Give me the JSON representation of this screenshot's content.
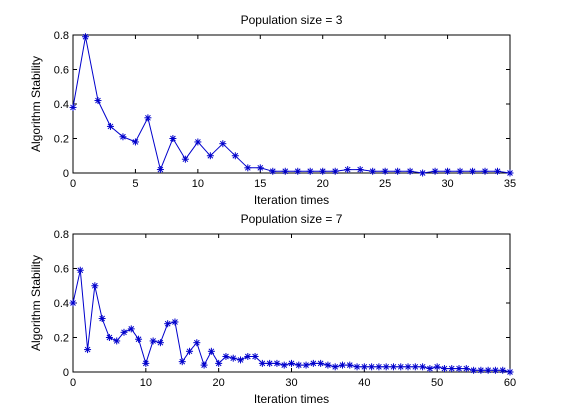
{
  "chart_data": [
    {
      "type": "line",
      "title": "Population size = 3",
      "xlabel": "Iteration times",
      "ylabel": "Algorithm Stability",
      "xlim": [
        0,
        35
      ],
      "ylim": [
        0,
        0.8
      ],
      "xticks": [
        "0",
        "5",
        "10",
        "15",
        "20",
        "25",
        "30",
        "35"
      ],
      "yticks": [
        "0",
        "0.2",
        "0.4",
        "0.6",
        "0.8"
      ],
      "marker": "asterisk",
      "grid": false,
      "series": [
        {
          "color": "#0000cc",
          "x": [
            0,
            1,
            2,
            3,
            4,
            5,
            6,
            7,
            8,
            9,
            10,
            11,
            12,
            13,
            14,
            15,
            16,
            17,
            18,
            19,
            20,
            21,
            22,
            23,
            24,
            25,
            26,
            27,
            28,
            29,
            30,
            31,
            32,
            33,
            34,
            35
          ],
          "y": [
            0.38,
            0.79,
            0.42,
            0.27,
            0.21,
            0.18,
            0.32,
            0.02,
            0.2,
            0.08,
            0.18,
            0.1,
            0.17,
            0.1,
            0.03,
            0.03,
            0.01,
            0.01,
            0.01,
            0.01,
            0.01,
            0.01,
            0.02,
            0.02,
            0.01,
            0.01,
            0.01,
            0.01,
            0.0,
            0.01,
            0.01,
            0.01,
            0.01,
            0.01,
            0.01,
            0.0
          ]
        }
      ]
    },
    {
      "type": "line",
      "title": "Population size = 7",
      "xlabel": "Iteration times",
      "ylabel": "Algorithm Stability",
      "xlim": [
        0,
        60
      ],
      "ylim": [
        0,
        0.8
      ],
      "xticks": [
        "0",
        "10",
        "20",
        "30",
        "40",
        "50",
        "60"
      ],
      "yticks": [
        "0",
        "0.2",
        "0.4",
        "0.6",
        "0.8"
      ],
      "marker": "asterisk",
      "grid": false,
      "series": [
        {
          "color": "#0000cc",
          "x": [
            0,
            1,
            2,
            3,
            4,
            5,
            6,
            7,
            8,
            9,
            10,
            11,
            12,
            13,
            14,
            15,
            16,
            17,
            18,
            19,
            20,
            21,
            22,
            23,
            24,
            25,
            26,
            27,
            28,
            29,
            30,
            31,
            32,
            33,
            34,
            35,
            36,
            37,
            38,
            39,
            40,
            41,
            42,
            43,
            44,
            45,
            46,
            47,
            48,
            49,
            50,
            51,
            52,
            53,
            54,
            55,
            56,
            57,
            58,
            59,
            60
          ],
          "y": [
            0.4,
            0.59,
            0.13,
            0.5,
            0.31,
            0.2,
            0.18,
            0.23,
            0.25,
            0.19,
            0.05,
            0.18,
            0.17,
            0.28,
            0.29,
            0.06,
            0.12,
            0.17,
            0.04,
            0.12,
            0.05,
            0.09,
            0.08,
            0.07,
            0.09,
            0.09,
            0.05,
            0.05,
            0.05,
            0.04,
            0.05,
            0.04,
            0.04,
            0.05,
            0.05,
            0.04,
            0.03,
            0.04,
            0.04,
            0.03,
            0.03,
            0.03,
            0.03,
            0.03,
            0.03,
            0.03,
            0.03,
            0.03,
            0.03,
            0.02,
            0.03,
            0.02,
            0.02,
            0.02,
            0.02,
            0.01,
            0.01,
            0.01,
            0.01,
            0.01,
            0.0
          ]
        }
      ]
    }
  ]
}
